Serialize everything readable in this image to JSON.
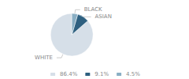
{
  "chart_data": {
    "type": "pie",
    "categories": [
      "WHITE",
      "ASIAN",
      "BLACK"
    ],
    "values": [
      86.4,
      9.1,
      4.5
    ],
    "value_labels": [
      "86.4%",
      "9.1%",
      "4.5%"
    ],
    "colors": [
      "#d6dfe8",
      "#2e6080",
      "#8aafc4"
    ],
    "legend": "bottom"
  }
}
